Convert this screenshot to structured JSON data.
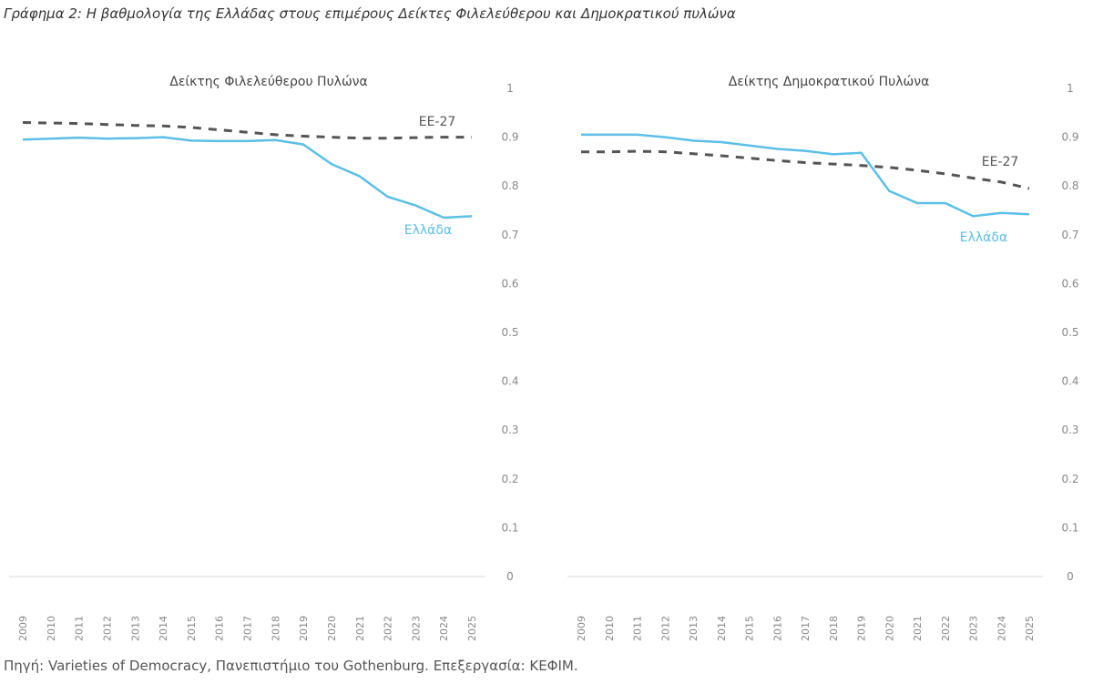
{
  "title": "Γράφημα 2: Η βαθμολογία της Ελλάδας στους επιμέρους Δείκτες Φιλελεύθερου και Δημοκρατικού πυλώνα",
  "source": "Πηγή: Varieties of Democracy, Πανεπιστήμιο του Gothenburg. Επεξεργασία: ΚΕΦΙΜ.",
  "colors": {
    "greece": "#5bbfe6",
    "eu": "#555555"
  },
  "chart_data": [
    {
      "type": "line",
      "title": "Δείκτης Φιλελεύθερου Πυλώνα",
      "x": [
        "2009",
        "2010",
        "2011",
        "2012",
        "2013",
        "2014",
        "2015",
        "2016",
        "2017",
        "2018",
        "2019",
        "2020",
        "2021",
        "2022",
        "2023",
        "2024",
        "2025"
      ],
      "ylim": [
        0,
        1
      ],
      "yticks": [
        "0",
        "0.1",
        "0.2",
        "0.3",
        "0.4",
        "0.5",
        "0.6",
        "0.7",
        "0.8",
        "0.9",
        "1"
      ],
      "series": [
        {
          "name": "Ελλάδα",
          "values": [
            0.895,
            0.897,
            0.899,
            0.897,
            0.898,
            0.9,
            0.893,
            0.892,
            0.892,
            0.894,
            0.885,
            0.845,
            0.82,
            0.778,
            0.76,
            0.735,
            0.738
          ]
        },
        {
          "name": "ΕΕ-27",
          "values": [
            0.93,
            0.929,
            0.928,
            0.926,
            0.924,
            0.923,
            0.92,
            0.915,
            0.91,
            0.905,
            0.902,
            0.9,
            0.898,
            0.898,
            0.899,
            0.9,
            0.9
          ]
        }
      ]
    },
    {
      "type": "line",
      "title": "Δείκτης Δημοκρατικού Πυλώνα",
      "x": [
        "2009",
        "2010",
        "2011",
        "2012",
        "2013",
        "2014",
        "2015",
        "2016",
        "2017",
        "2018",
        "2019",
        "2020",
        "2021",
        "2022",
        "2023",
        "2024",
        "2025"
      ],
      "ylim": [
        0,
        1
      ],
      "yticks": [
        "0",
        "0.1",
        "0.2",
        "0.3",
        "0.4",
        "0.5",
        "0.6",
        "0.7",
        "0.8",
        "0.9",
        "1"
      ],
      "series": [
        {
          "name": "Ελλάδα",
          "values": [
            0.905,
            0.905,
            0.905,
            0.9,
            0.893,
            0.89,
            0.883,
            0.876,
            0.872,
            0.865,
            0.868,
            0.79,
            0.765,
            0.765,
            0.738,
            0.745,
            0.742
          ]
        },
        {
          "name": "ΕΕ-27",
          "values": [
            0.87,
            0.87,
            0.871,
            0.87,
            0.866,
            0.862,
            0.857,
            0.852,
            0.848,
            0.845,
            0.842,
            0.838,
            0.832,
            0.825,
            0.816,
            0.808,
            0.795
          ]
        }
      ]
    }
  ]
}
